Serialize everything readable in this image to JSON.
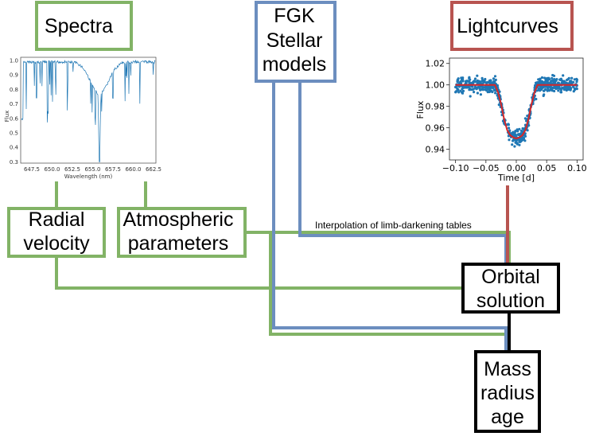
{
  "nodes": {
    "spectra": {
      "label": "Spectra"
    },
    "fgk": {
      "lines": [
        "FGK",
        "Stellar",
        "models"
      ]
    },
    "lightcurves": {
      "label": "Lightcurves"
    },
    "radial_velocity": {
      "lines": [
        "Radial",
        "velocity"
      ]
    },
    "atmospheric": {
      "lines": [
        "Atmospheric",
        "parameters"
      ]
    },
    "orbital": {
      "lines": [
        "Orbital",
        "solution"
      ]
    },
    "mass": {
      "lines": [
        "Mass",
        "radius",
        "age"
      ]
    }
  },
  "edge_label": "Interpolation of limb-darkening tables",
  "colors": {
    "green": "#82b366",
    "blue": "#6c8ebf",
    "red": "#b85450",
    "black": "#000000",
    "spectrum_line": "#1f77b4",
    "lc_points": "#1f77b4",
    "lc_model": "#d62728"
  },
  "spectrum_plot": {
    "ylabel": "Flux",
    "xlabel": "Wavelength (nm)",
    "yticks": [
      "1.0",
      "0.9",
      "0.8",
      "0.7",
      "0.6",
      "0.5",
      "0.4",
      "0.3"
    ],
    "xticks": [
      "647.5",
      "650.0",
      "652.5",
      "655.0",
      "657.5",
      "660.0",
      "662.5"
    ]
  },
  "chart_data": {
    "type": "scatter",
    "xlabel": "Time [d]",
    "ylabel": "Flux",
    "xlim": [
      -0.11,
      0.11
    ],
    "ylim": [
      0.93,
      1.025
    ],
    "xticks": [
      "−0.10",
      "−0.05",
      "0.00",
      "0.05",
      "0.10"
    ],
    "yticks": [
      "1.02",
      "1.00",
      "0.98",
      "0.96",
      "0.94"
    ],
    "model": {
      "x": [
        -0.1,
        -0.035,
        -0.03,
        -0.025,
        -0.02,
        -0.015,
        -0.01,
        -0.005,
        0.0,
        0.005,
        0.01,
        0.015,
        0.02,
        0.025,
        0.03,
        0.035,
        0.1
      ],
      "y": [
        1.0,
        1.0,
        0.993,
        0.982,
        0.968,
        0.958,
        0.953,
        0.951,
        0.95,
        0.951,
        0.953,
        0.958,
        0.968,
        0.982,
        0.993,
        1.0,
        1.0
      ]
    },
    "noise_scatter": 0.006
  }
}
